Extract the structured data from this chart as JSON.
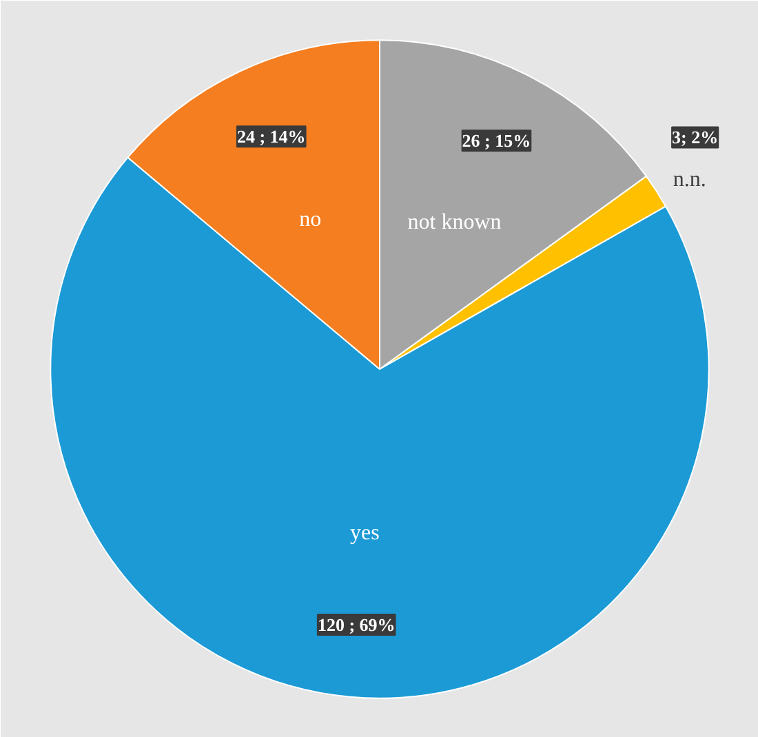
{
  "chart_data": {
    "type": "pie",
    "categories": [
      "not known",
      "n.n.",
      "yes",
      "no"
    ],
    "values": [
      26,
      3,
      120,
      24
    ],
    "colors": [
      "#a5a5a5",
      "#ffc000",
      "#1b9ad6",
      "#f47e20"
    ],
    "value_labels": [
      "26 ; 15%",
      "3; 2%",
      "120 ; 69%",
      "24 ; 14%"
    ]
  }
}
